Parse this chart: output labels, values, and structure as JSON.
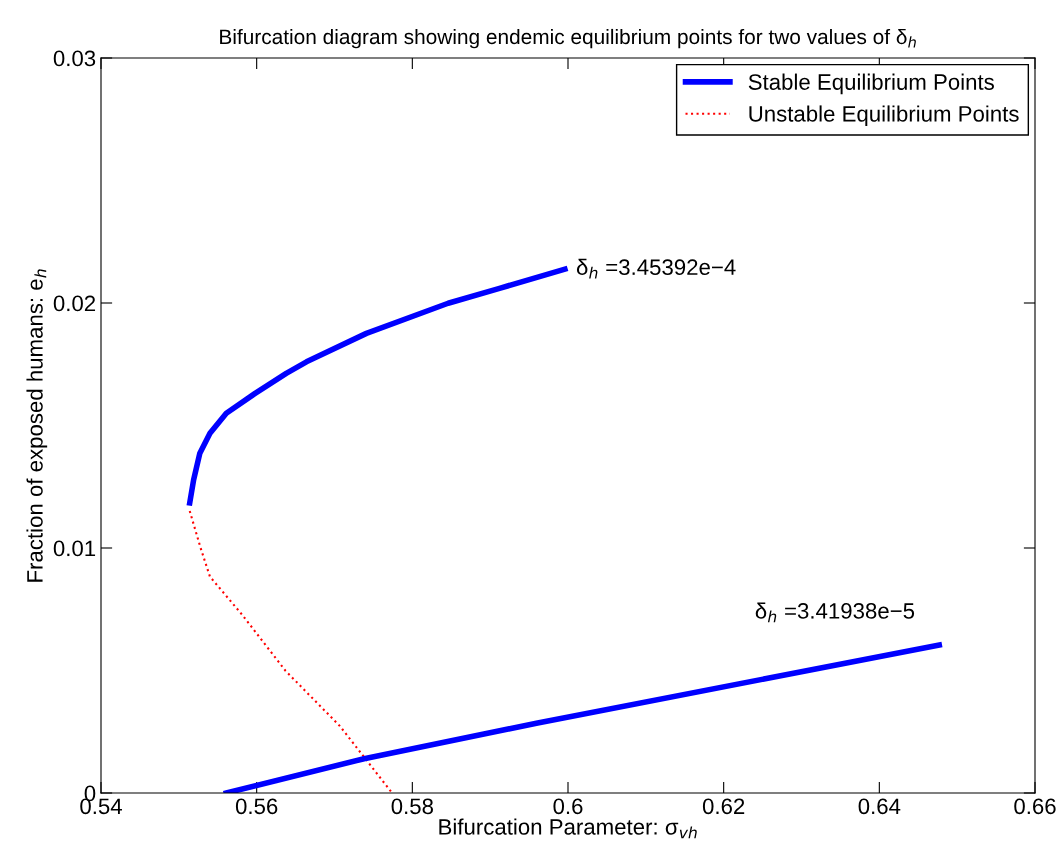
{
  "chart_data": {
    "type": "line",
    "title": "Bifurcation diagram showing endemic equilibrium points for two values of δ$_{h}$",
    "xlabel": "Bifurcation Parameter: σ$_{vh}$",
    "ylabel": "Fraction of exposed humans: e$_{h}$",
    "xlim": [
      0.54,
      0.66
    ],
    "xticks": [
      0.54,
      0.56,
      0.58,
      0.6,
      0.62,
      0.64,
      0.66
    ],
    "ylim": [
      0,
      0.03
    ],
    "yticks": [
      0,
      0.01,
      0.02,
      0.03
    ],
    "grid": false,
    "legend": "top right",
    "series": [
      {
        "name": "Stable Equilibrium Points",
        "color": "#0000ff",
        "line_style": "solid",
        "x": [
          0.5514,
          0.5519,
          0.5527,
          0.554,
          0.5561,
          0.5598,
          0.5638,
          0.5664,
          0.5741,
          0.5846,
          0.5912,
          0.5996
        ],
        "values": [
          0.01184,
          0.01278,
          0.01387,
          0.01468,
          0.0155,
          0.01631,
          0.01713,
          0.0176,
          0.01876,
          0.01999,
          0.0206,
          0.02138
        ]
      },
      {
        "name": "Unstable Equilibrium Points",
        "color": "#ff0000",
        "line_style": "dotted",
        "x": [
          0.5514,
          0.5528,
          0.554,
          0.5582,
          0.5637,
          0.5707,
          0.5774
        ],
        "values": [
          0.01151,
          0.01,
          0.00883,
          0.00725,
          0.00499,
          0.00273,
          0
        ]
      },
      {
        "color": "#0000ff",
        "line_style": "solid",
        "x": [
          0.5561,
          0.5738,
          0.5961,
          0.6477
        ],
        "values": [
          0,
          0.0014,
          0.00286,
          0.00604
        ]
      }
    ],
    "annotations": [
      {
        "text": "δ$_{h}$ =3.45392e−4",
        "x": 0.5996,
        "y": 0.02138
      },
      "δ$_{h}$ =3.41938e−5"
    ]
  }
}
